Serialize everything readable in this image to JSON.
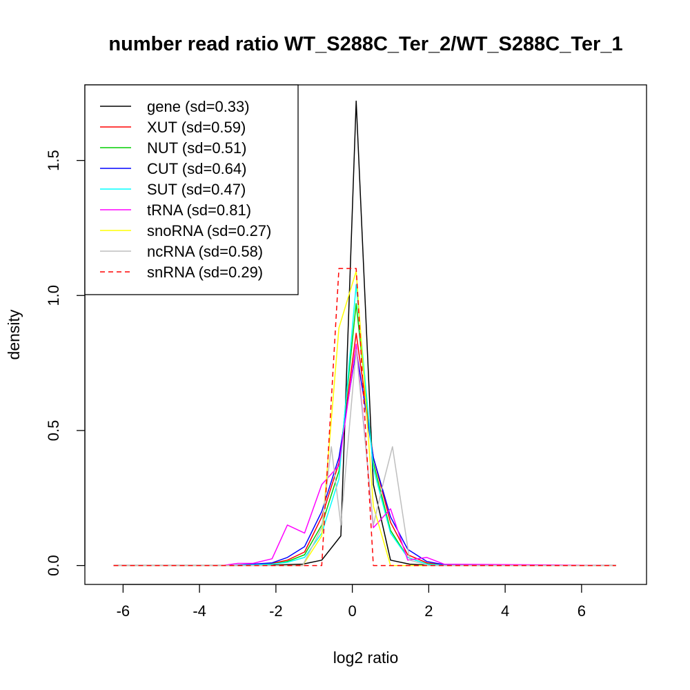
{
  "chart_data": {
    "type": "line",
    "title": "number read ratio WT_S288C_Ter_2/WT_S288C_Ter_1",
    "xlabel": "log2 ratio",
    "ylabel": "density",
    "xlim": [
      -7.0,
      7.7
    ],
    "ylim": [
      -0.07,
      1.78
    ],
    "xticks": [
      -6,
      -4,
      -2,
      0,
      2,
      4,
      6
    ],
    "xtick_labels": [
      "-6",
      "-4",
      "-2",
      "0",
      "2",
      "4",
      "6"
    ],
    "yticks": [
      0.0,
      0.5,
      1.0,
      1.5
    ],
    "ytick_labels": [
      "0.0",
      "0.5",
      "1.0",
      "1.5"
    ],
    "legend_position": "top-left",
    "series": [
      {
        "name": "gene (sd=0.33)",
        "color": "#000000",
        "dash": "solid",
        "x": [
          -6.25,
          -3.0,
          -2.0,
          -1.3,
          -0.8,
          -0.3,
          0.1,
          0.55,
          1.0,
          1.5,
          2.0,
          6.9
        ],
        "y": [
          0,
          0,
          0.002,
          0.005,
          0.02,
          0.11,
          1.72,
          0.3,
          0.02,
          0.005,
          0.001,
          0
        ]
      },
      {
        "name": "XUT (sd=0.59)",
        "color": "#ff0000",
        "dash": "solid",
        "x": [
          -6.25,
          -3.2,
          -2.6,
          -2.1,
          -1.7,
          -1.25,
          -0.8,
          -0.35,
          0.1,
          0.55,
          1.0,
          1.45,
          1.95,
          2.4,
          6.9
        ],
        "y": [
          0,
          0,
          0.004,
          0.008,
          0.02,
          0.05,
          0.18,
          0.38,
          0.86,
          0.4,
          0.16,
          0.04,
          0.01,
          0.002,
          0
        ]
      },
      {
        "name": "NUT (sd=0.51)",
        "color": "#00cd00",
        "dash": "solid",
        "x": [
          -6.25,
          -3.2,
          -2.6,
          -2.1,
          -1.7,
          -1.25,
          -0.8,
          -0.35,
          0.1,
          0.55,
          1.0,
          1.45,
          1.95,
          2.4,
          6.9
        ],
        "y": [
          0,
          0,
          0.002,
          0.005,
          0.015,
          0.04,
          0.15,
          0.35,
          0.97,
          0.38,
          0.13,
          0.03,
          0.006,
          0.001,
          0
        ]
      },
      {
        "name": "CUT (sd=0.64)",
        "color": "#0000ff",
        "dash": "solid",
        "x": [
          -6.25,
          -3.2,
          -2.6,
          -2.1,
          -1.7,
          -1.25,
          -0.8,
          -0.35,
          0.1,
          0.55,
          1.0,
          1.45,
          1.95,
          2.4,
          6.9
        ],
        "y": [
          0,
          0,
          0.005,
          0.01,
          0.03,
          0.07,
          0.2,
          0.4,
          0.8,
          0.4,
          0.18,
          0.06,
          0.015,
          0.003,
          0
        ]
      },
      {
        "name": "SUT (sd=0.47)",
        "color": "#00ffff",
        "dash": "solid",
        "x": [
          -6.25,
          -3.2,
          -2.6,
          -2.1,
          -1.7,
          -1.25,
          -0.8,
          -0.35,
          0.1,
          0.55,
          1.0,
          1.45,
          1.95,
          2.4,
          6.9
        ],
        "y": [
          0,
          0,
          0.002,
          0.005,
          0.012,
          0.03,
          0.12,
          0.32,
          1.04,
          0.36,
          0.12,
          0.03,
          0.005,
          0.001,
          0
        ]
      },
      {
        "name": "tRNA (sd=0.81)",
        "color": "#ff00ff",
        "dash": "solid",
        "x": [
          -6.25,
          -3.4,
          -3.0,
          -2.6,
          -2.1,
          -1.7,
          -1.25,
          -0.8,
          -0.35,
          0.1,
          0.55,
          1.0,
          1.45,
          1.95,
          2.4,
          6.9
        ],
        "y": [
          0,
          0,
          0.008,
          0.008,
          0.025,
          0.15,
          0.12,
          0.3,
          0.37,
          0.82,
          0.14,
          0.21,
          0.02,
          0.03,
          0.005,
          0
        ]
      },
      {
        "name": "snoRNA (sd=0.27)",
        "color": "#ffff00",
        "dash": "solid",
        "x": [
          -6.25,
          -1.3,
          -0.8,
          -0.35,
          0.1,
          0.55,
          1.0,
          1.5,
          6.9
        ],
        "y": [
          0,
          0,
          0.11,
          0.88,
          1.09,
          0.22,
          0,
          0,
          0
        ]
      },
      {
        "name": "ncRNA (sd=0.58)",
        "color": "#bebebe",
        "dash": "solid",
        "x": [
          -6.25,
          -1.3,
          -0.8,
          -0.55,
          -0.3,
          0.1,
          0.55,
          0.8,
          1.05,
          1.5,
          2.0,
          6.9
        ],
        "y": [
          0,
          0,
          0.14,
          0.44,
          0.15,
          0.8,
          0.15,
          0.3,
          0.44,
          0.02,
          0,
          0
        ]
      },
      {
        "name": "snRNA (sd=0.29)",
        "color": "#ff0000",
        "dash": "dashed",
        "x": [
          -6.25,
          -0.8,
          -0.35,
          0.1,
          0.55,
          6.9
        ],
        "y": [
          0,
          0,
          1.1,
          1.1,
          0,
          0
        ]
      }
    ]
  }
}
